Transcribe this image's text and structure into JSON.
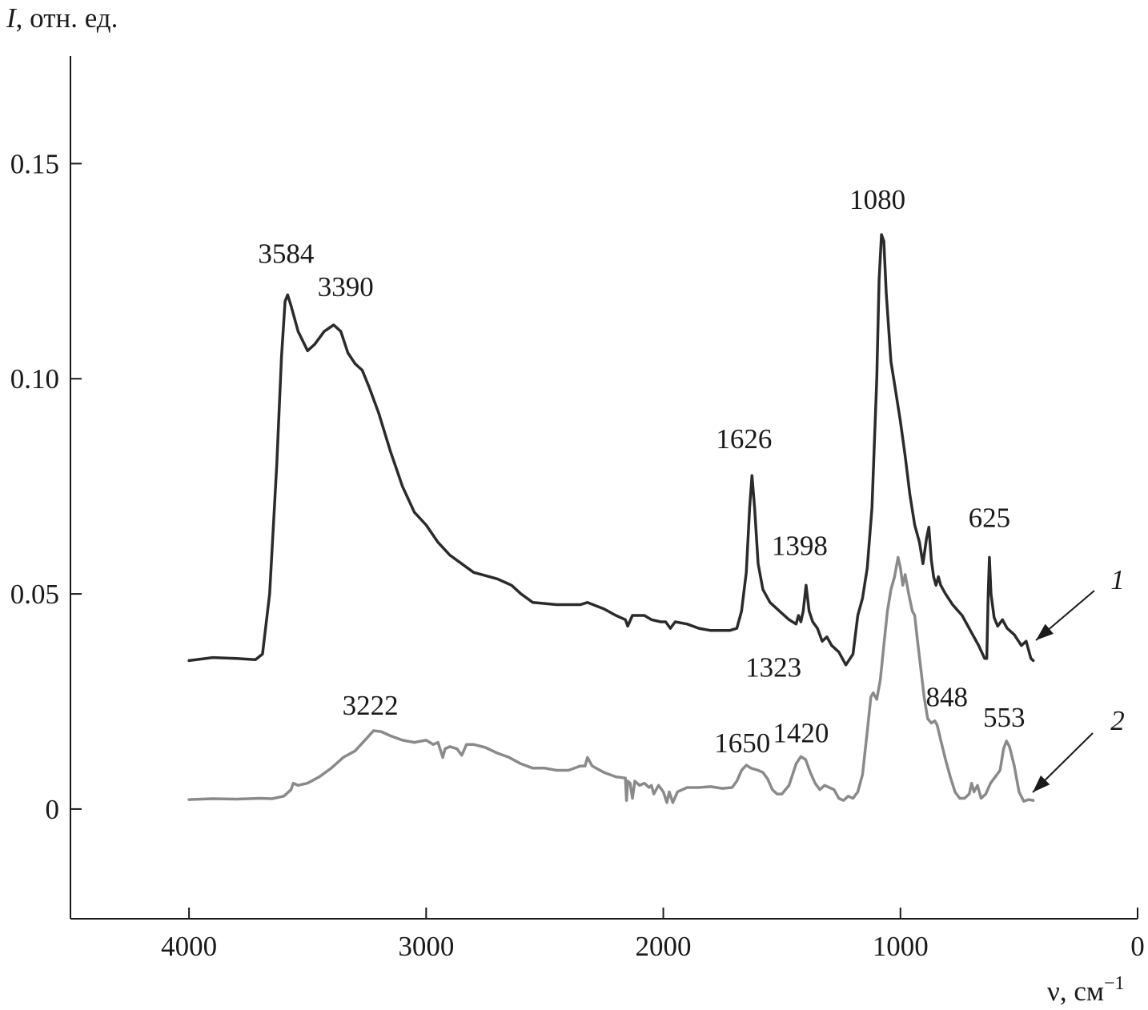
{
  "chart_data": {
    "type": "line",
    "ylabel": "I, отн. ед.",
    "ylabel_symbol": "I",
    "ylabel_rest": ", отн. ед.",
    "xlabel": "ν, см−1",
    "xlabel_main": "ν, см",
    "xlabel_sup": "−1",
    "xlim": [
      4500,
      0
    ],
    "ylim": [
      -0.0255,
      0.175
    ],
    "x_reversed": true,
    "grid": false,
    "xticks": [
      4000,
      3000,
      2000,
      1000,
      0
    ],
    "xtick_labels": [
      "4000",
      "3000",
      "2000",
      "1000",
      "0"
    ],
    "yticks": [
      0,
      0.05,
      0.1,
      0.15
    ],
    "ytick_labels": [
      "0",
      "0.05",
      "0.10",
      "0.15"
    ],
    "colors": {
      "series1": "#2b2b2b",
      "series2": "#8a8a8a",
      "axis": "#1a1a1a"
    },
    "series": [
      {
        "name": "1",
        "points": [
          [
            4000,
            0.0345
          ],
          [
            3900,
            0.0352
          ],
          [
            3800,
            0.035
          ],
          [
            3720,
            0.0347
          ],
          [
            3690,
            0.036
          ],
          [
            3660,
            0.05
          ],
          [
            3630,
            0.08
          ],
          [
            3610,
            0.105
          ],
          [
            3595,
            0.118
          ],
          [
            3584,
            0.1195
          ],
          [
            3570,
            0.117
          ],
          [
            3540,
            0.111
          ],
          [
            3500,
            0.1065
          ],
          [
            3470,
            0.108
          ],
          [
            3430,
            0.111
          ],
          [
            3390,
            0.1125
          ],
          [
            3360,
            0.111
          ],
          [
            3330,
            0.106
          ],
          [
            3300,
            0.1035
          ],
          [
            3270,
            0.102
          ],
          [
            3240,
            0.098
          ],
          [
            3200,
            0.092
          ],
          [
            3150,
            0.083
          ],
          [
            3100,
            0.075
          ],
          [
            3050,
            0.069
          ],
          [
            3000,
            0.066
          ],
          [
            2950,
            0.062
          ],
          [
            2900,
            0.059
          ],
          [
            2850,
            0.057
          ],
          [
            2800,
            0.055
          ],
          [
            2700,
            0.0535
          ],
          [
            2640,
            0.052
          ],
          [
            2600,
            0.05
          ],
          [
            2550,
            0.048
          ],
          [
            2450,
            0.0475
          ],
          [
            2350,
            0.0475
          ],
          [
            2320,
            0.048
          ],
          [
            2250,
            0.0465
          ],
          [
            2200,
            0.045
          ],
          [
            2160,
            0.044
          ],
          [
            2150,
            0.0425
          ],
          [
            2130,
            0.045
          ],
          [
            2080,
            0.045
          ],
          [
            2050,
            0.044
          ],
          [
            2010,
            0.0435
          ],
          [
            1990,
            0.0435
          ],
          [
            1970,
            0.042
          ],
          [
            1950,
            0.0435
          ],
          [
            1900,
            0.043
          ],
          [
            1850,
            0.042
          ],
          [
            1800,
            0.0415
          ],
          [
            1720,
            0.0415
          ],
          [
            1690,
            0.042
          ],
          [
            1670,
            0.046
          ],
          [
            1650,
            0.055
          ],
          [
            1636,
            0.07
          ],
          [
            1626,
            0.0775
          ],
          [
            1615,
            0.07
          ],
          [
            1600,
            0.057
          ],
          [
            1580,
            0.051
          ],
          [
            1550,
            0.048
          ],
          [
            1500,
            0.0455
          ],
          [
            1470,
            0.044
          ],
          [
            1440,
            0.043
          ],
          [
            1430,
            0.045
          ],
          [
            1420,
            0.0435
          ],
          [
            1410,
            0.046
          ],
          [
            1398,
            0.052
          ],
          [
            1385,
            0.046
          ],
          [
            1370,
            0.0435
          ],
          [
            1350,
            0.042
          ],
          [
            1330,
            0.039
          ],
          [
            1310,
            0.04
          ],
          [
            1290,
            0.038
          ],
          [
            1260,
            0.0365
          ],
          [
            1230,
            0.0335
          ],
          [
            1200,
            0.036
          ],
          [
            1180,
            0.045
          ],
          [
            1160,
            0.049
          ],
          [
            1140,
            0.056
          ],
          [
            1120,
            0.07
          ],
          [
            1100,
            0.1
          ],
          [
            1090,
            0.123
          ],
          [
            1080,
            0.1335
          ],
          [
            1070,
            0.132
          ],
          [
            1060,
            0.12
          ],
          [
            1040,
            0.104
          ],
          [
            1020,
            0.097
          ],
          [
            1000,
            0.09
          ],
          [
            980,
            0.082
          ],
          [
            960,
            0.073
          ],
          [
            940,
            0.066
          ],
          [
            920,
            0.062
          ],
          [
            905,
            0.057
          ],
          [
            890,
            0.063
          ],
          [
            880,
            0.0655
          ],
          [
            870,
            0.058
          ],
          [
            860,
            0.054
          ],
          [
            850,
            0.052
          ],
          [
            840,
            0.054
          ],
          [
            830,
            0.052
          ],
          [
            810,
            0.05
          ],
          [
            780,
            0.0475
          ],
          [
            740,
            0.045
          ],
          [
            700,
            0.041
          ],
          [
            670,
            0.038
          ],
          [
            645,
            0.035
          ],
          [
            636,
            0.035
          ],
          [
            630,
            0.05
          ],
          [
            625,
            0.0585
          ],
          [
            618,
            0.05
          ],
          [
            605,
            0.0445
          ],
          [
            590,
            0.0425
          ],
          [
            570,
            0.044
          ],
          [
            550,
            0.042
          ],
          [
            520,
            0.0405
          ],
          [
            490,
            0.038
          ],
          [
            470,
            0.039
          ],
          [
            450,
            0.035
          ],
          [
            440,
            0.0345
          ]
        ]
      },
      {
        "name": "2",
        "points": [
          [
            4000,
            0.0022
          ],
          [
            3900,
            0.0024
          ],
          [
            3800,
            0.0023
          ],
          [
            3700,
            0.0025
          ],
          [
            3650,
            0.0024
          ],
          [
            3600,
            0.003
          ],
          [
            3570,
            0.0045
          ],
          [
            3560,
            0.006
          ],
          [
            3540,
            0.0055
          ],
          [
            3500,
            0.006
          ],
          [
            3450,
            0.0075
          ],
          [
            3400,
            0.0095
          ],
          [
            3350,
            0.012
          ],
          [
            3300,
            0.0135
          ],
          [
            3250,
            0.0165
          ],
          [
            3222,
            0.0182
          ],
          [
            3190,
            0.018
          ],
          [
            3150,
            0.017
          ],
          [
            3100,
            0.016
          ],
          [
            3050,
            0.0155
          ],
          [
            3000,
            0.016
          ],
          [
            2970,
            0.015
          ],
          [
            2950,
            0.0155
          ],
          [
            2930,
            0.012
          ],
          [
            2920,
            0.014
          ],
          [
            2900,
            0.0145
          ],
          [
            2870,
            0.014
          ],
          [
            2850,
            0.0125
          ],
          [
            2830,
            0.015
          ],
          [
            2800,
            0.015
          ],
          [
            2750,
            0.0143
          ],
          [
            2700,
            0.013
          ],
          [
            2650,
            0.012
          ],
          [
            2600,
            0.0105
          ],
          [
            2550,
            0.0095
          ],
          [
            2500,
            0.0095
          ],
          [
            2450,
            0.009
          ],
          [
            2400,
            0.009
          ],
          [
            2350,
            0.01
          ],
          [
            2330,
            0.01
          ],
          [
            2320,
            0.012
          ],
          [
            2300,
            0.01
          ],
          [
            2250,
            0.0085
          ],
          [
            2200,
            0.0075
          ],
          [
            2160,
            0.0072
          ],
          [
            2155,
            0.002
          ],
          [
            2150,
            0.0065
          ],
          [
            2140,
            0.006
          ],
          [
            2130,
            0.0025
          ],
          [
            2120,
            0.0065
          ],
          [
            2100,
            0.0055
          ],
          [
            2080,
            0.006
          ],
          [
            2060,
            0.005
          ],
          [
            2050,
            0.0055
          ],
          [
            2040,
            0.0035
          ],
          [
            2020,
            0.0055
          ],
          [
            2000,
            0.004
          ],
          [
            1985,
            0.0015
          ],
          [
            1975,
            0.004
          ],
          [
            1960,
            0.0015
          ],
          [
            1940,
            0.004
          ],
          [
            1920,
            0.0045
          ],
          [
            1900,
            0.005
          ],
          [
            1850,
            0.005
          ],
          [
            1800,
            0.0052
          ],
          [
            1750,
            0.0048
          ],
          [
            1710,
            0.005
          ],
          [
            1690,
            0.0065
          ],
          [
            1670,
            0.009
          ],
          [
            1650,
            0.0102
          ],
          [
            1630,
            0.0095
          ],
          [
            1600,
            0.009
          ],
          [
            1580,
            0.0085
          ],
          [
            1560,
            0.007
          ],
          [
            1540,
            0.0045
          ],
          [
            1520,
            0.0035
          ],
          [
            1500,
            0.0035
          ],
          [
            1470,
            0.0055
          ],
          [
            1440,
            0.0105
          ],
          [
            1420,
            0.0122
          ],
          [
            1400,
            0.0115
          ],
          [
            1380,
            0.0085
          ],
          [
            1360,
            0.006
          ],
          [
            1340,
            0.0045
          ],
          [
            1320,
            0.0055
          ],
          [
            1300,
            0.005
          ],
          [
            1280,
            0.0045
          ],
          [
            1260,
            0.0025
          ],
          [
            1240,
            0.002
          ],
          [
            1220,
            0.003
          ],
          [
            1200,
            0.0025
          ],
          [
            1180,
            0.004
          ],
          [
            1160,
            0.008
          ],
          [
            1140,
            0.018
          ],
          [
            1125,
            0.026
          ],
          [
            1115,
            0.027
          ],
          [
            1100,
            0.0255
          ],
          [
            1085,
            0.03
          ],
          [
            1070,
            0.038
          ],
          [
            1055,
            0.046
          ],
          [
            1040,
            0.051
          ],
          [
            1025,
            0.054
          ],
          [
            1010,
            0.0585
          ],
          [
            1000,
            0.056
          ],
          [
            990,
            0.052
          ],
          [
            980,
            0.0545
          ],
          [
            965,
            0.05
          ],
          [
            950,
            0.046
          ],
          [
            940,
            0.045
          ],
          [
            930,
            0.04
          ],
          [
            915,
            0.033
          ],
          [
            900,
            0.026
          ],
          [
            885,
            0.021
          ],
          [
            870,
            0.02
          ],
          [
            855,
            0.0205
          ],
          [
            845,
            0.0195
          ],
          [
            830,
            0.016
          ],
          [
            810,
            0.0115
          ],
          [
            790,
            0.0075
          ],
          [
            770,
            0.004
          ],
          [
            750,
            0.0025
          ],
          [
            730,
            0.0025
          ],
          [
            710,
            0.0035
          ],
          [
            700,
            0.006
          ],
          [
            690,
            0.004
          ],
          [
            675,
            0.0055
          ],
          [
            660,
            0.0025
          ],
          [
            640,
            0.0035
          ],
          [
            620,
            0.006
          ],
          [
            600,
            0.0075
          ],
          [
            580,
            0.009
          ],
          [
            565,
            0.014
          ],
          [
            553,
            0.0158
          ],
          [
            540,
            0.0145
          ],
          [
            520,
            0.01
          ],
          [
            500,
            0.004
          ],
          [
            480,
            0.0018
          ],
          [
            460,
            0.0022
          ],
          [
            440,
            0.002
          ]
        ]
      }
    ],
    "annotations": [
      {
        "text": "3584",
        "x": 3584,
        "y": 0.1195,
        "series": 1
      },
      {
        "text": "3390",
        "x": 3390,
        "y": 0.1125,
        "series": 1
      },
      {
        "text": "1626",
        "x": 1626,
        "y": 0.0775,
        "series": 1
      },
      {
        "text": "1398",
        "x": 1398,
        "y": 0.052,
        "series": 1
      },
      {
        "text": "1080",
        "x": 1080,
        "y": 0.1335,
        "series": 1
      },
      {
        "text": "625",
        "x": 625,
        "y": 0.0585,
        "series": 1
      },
      {
        "text": "3222",
        "x": 3222,
        "y": 0.0182,
        "series": 2
      },
      {
        "text": "1650",
        "x": 1650,
        "y": 0.0102,
        "series": 2
      },
      {
        "text": "1420",
        "x": 1420,
        "y": 0.0122,
        "series": 2
      },
      {
        "text": "1323",
        "x": 1323,
        "y": 0.027,
        "series": 2
      },
      {
        "text": "848",
        "x": 848,
        "y": 0.0205,
        "series": 2
      },
      {
        "text": "553",
        "x": 553,
        "y": 0.0158,
        "series": 2
      }
    ],
    "curve_labels": [
      {
        "text": "1",
        "series": 1
      },
      {
        "text": "2",
        "series": 2
      }
    ]
  }
}
